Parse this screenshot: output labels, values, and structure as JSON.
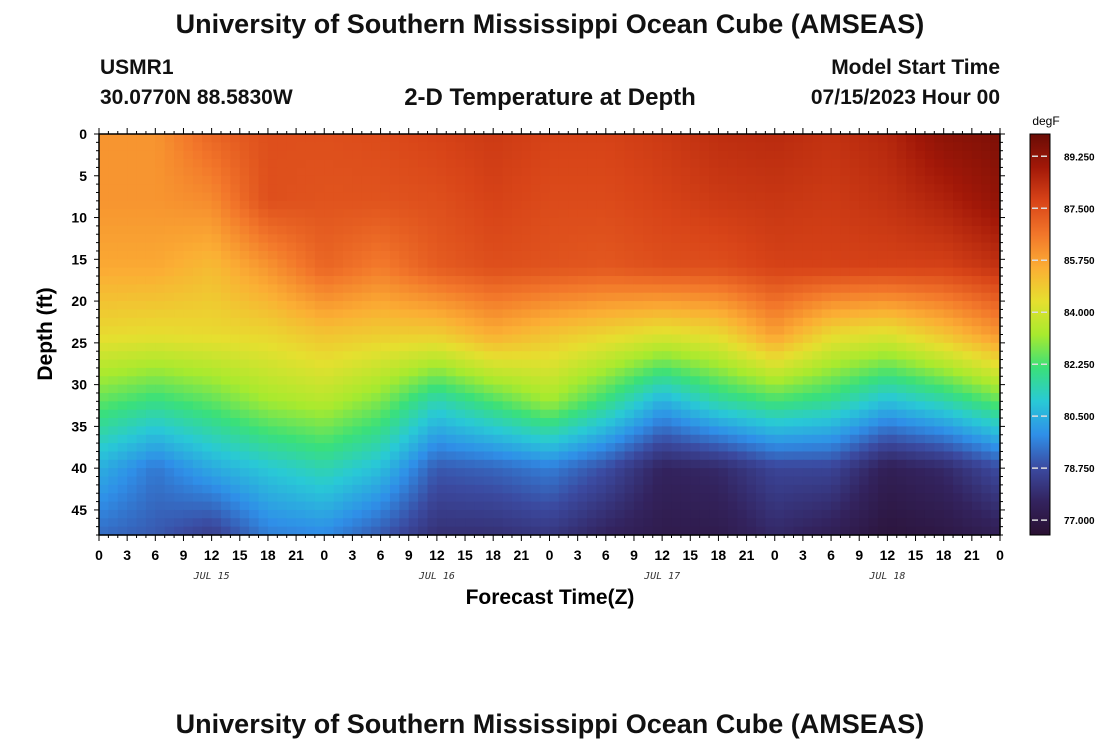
{
  "header": {
    "title": "University of Southern Mississippi Ocean Cube (AMSEAS)",
    "station": "USMR1",
    "coords": "30.0770N  88.5830W",
    "subtitle": "2-D Temperature at Depth",
    "start_label": "Model Start Time",
    "start_value": "07/15/2023 Hour 00"
  },
  "footer": {
    "title": "University of Southern Mississippi Ocean Cube (AMSEAS)"
  },
  "colors": {
    "scale": [
      "#2a1032",
      "#33235e",
      "#3b4aa0",
      "#2f8fe8",
      "#29c9d6",
      "#3ae07a",
      "#a8ea2e",
      "#e6df2f",
      "#fbae34",
      "#f2762a",
      "#d84418",
      "#a21808",
      "#6a0c06"
    ]
  },
  "chart_data": {
    "type": "heatmap",
    "title": "2-D Temperature at Depth",
    "xlabel": "Forecast Time(Z)",
    "ylabel": "Depth (ft)",
    "x_tick_labels": [
      "0",
      "3",
      "6",
      "9",
      "12",
      "15",
      "18",
      "21",
      "0",
      "3",
      "6",
      "9",
      "12",
      "15",
      "18",
      "21",
      "0",
      "3",
      "6",
      "9",
      "12",
      "15",
      "18",
      "21",
      "0",
      "3",
      "6",
      "9",
      "12",
      "15",
      "18",
      "21",
      "0"
    ],
    "x_range_hours": [
      0,
      96
    ],
    "day_labels": [
      {
        "text": "JUL 15",
        "hour": 12
      },
      {
        "text": "JUL 16",
        "hour": 36
      },
      {
        "text": "JUL 17",
        "hour": 60
      },
      {
        "text": "JUL 18",
        "hour": 84
      }
    ],
    "y_ticks": [
      0,
      5,
      10,
      15,
      20,
      25,
      30,
      35,
      40,
      45
    ],
    "y_range_ft": [
      0,
      48
    ],
    "colorbar": {
      "unit": "degF",
      "min": 76.5,
      "max": 90.0,
      "tick_values": [
        89.25,
        87.5,
        85.75,
        84.0,
        82.25,
        80.5,
        78.75,
        77.0
      ],
      "tick_labels": [
        "89.250",
        "87.500",
        "85.750",
        "84.000",
        "82.250",
        "80.500",
        "78.750",
        "77.000"
      ]
    },
    "grid": {
      "time_hours": [
        0,
        6,
        12,
        18,
        24,
        30,
        36,
        42,
        48,
        54,
        60,
        66,
        72,
        78,
        84,
        90,
        96
      ],
      "depth_ft": [
        0,
        8,
        16,
        24,
        32,
        40,
        48
      ],
      "values_degF": [
        [
          86.0,
          86.0,
          87.0,
          87.5,
          87.5,
          87.6,
          87.8,
          88.0,
          87.8,
          87.8,
          88.0,
          88.3,
          88.4,
          88.2,
          88.5,
          89.3,
          89.6
        ],
        [
          86.0,
          86.0,
          86.2,
          87.5,
          87.4,
          87.4,
          87.5,
          87.8,
          87.6,
          87.6,
          87.8,
          88.0,
          88.1,
          88.0,
          88.2,
          88.6,
          89.2
        ],
        [
          85.6,
          85.6,
          85.2,
          86.0,
          87.0,
          86.5,
          87.2,
          87.5,
          87.4,
          87.3,
          87.5,
          87.5,
          87.8,
          87.8,
          87.8,
          87.8,
          88.2
        ],
        [
          84.5,
          84.4,
          84.5,
          84.6,
          85.0,
          84.8,
          84.8,
          85.5,
          85.0,
          84.6,
          84.2,
          84.5,
          85.8,
          84.5,
          84.2,
          85.0,
          86.0
        ],
        [
          82.5,
          82.0,
          82.5,
          83.2,
          83.5,
          82.8,
          81.4,
          82.3,
          83.2,
          82.0,
          80.5,
          81.6,
          82.2,
          81.8,
          80.8,
          81.5,
          82.5
        ],
        [
          80.5,
          79.5,
          80.4,
          81.0,
          81.5,
          80.8,
          79.0,
          79.2,
          79.6,
          78.8,
          77.6,
          77.8,
          78.6,
          78.6,
          77.4,
          77.8,
          78.8
        ],
        [
          79.3,
          79.0,
          78.4,
          79.6,
          79.8,
          79.0,
          78.0,
          78.0,
          78.2,
          77.6,
          77.2,
          77.2,
          77.8,
          77.4,
          76.8,
          77.0,
          77.4
        ]
      ]
    }
  }
}
